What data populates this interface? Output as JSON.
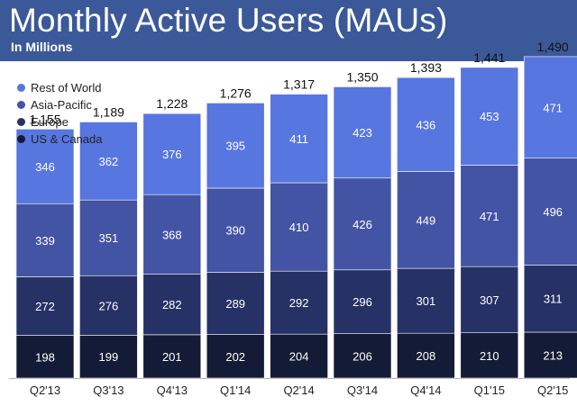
{
  "header": {
    "title": "Monthly Active Users (MAUs)",
    "subtitle": "In Millions"
  },
  "colors": {
    "header_bg": "#3b5998",
    "rest_of_world": "#5876e0",
    "asia_pacific": "#4454a4",
    "europe": "#263166",
    "us_canada": "#141b36"
  },
  "chart_data": {
    "type": "bar",
    "stacked": true,
    "title": "Monthly Active Users (MAUs)",
    "subtitle": "In Millions",
    "xlabel": "",
    "ylabel": "",
    "categories": [
      "Q2'13",
      "Q3'13",
      "Q4'13",
      "Q1'14",
      "Q2'14",
      "Q3'14",
      "Q4'14",
      "Q1'15",
      "Q2'15"
    ],
    "totals": [
      "1,155",
      "1,189",
      "1,228",
      "1,276",
      "1,317",
      "1,350",
      "1,393",
      "1,441",
      "1,490"
    ],
    "series": [
      {
        "name": "US & Canada",
        "key": "us_canada",
        "values": [
          198,
          199,
          201,
          202,
          204,
          206,
          208,
          210,
          213
        ]
      },
      {
        "name": "Europe",
        "key": "europe",
        "values": [
          272,
          276,
          282,
          289,
          292,
          296,
          301,
          307,
          311
        ]
      },
      {
        "name": "Asia-Pacific",
        "key": "asia_pacific",
        "values": [
          339,
          351,
          368,
          390,
          410,
          426,
          449,
          471,
          496
        ]
      },
      {
        "name": "Rest of World",
        "key": "rest_of_world",
        "values": [
          346,
          362,
          376,
          395,
          411,
          423,
          436,
          453,
          471
        ]
      }
    ],
    "legend": [
      "Rest of World",
      "Asia-Pacific",
      "Europe",
      "US & Canada"
    ],
    "legend_position": "top-left",
    "grid": false
  }
}
